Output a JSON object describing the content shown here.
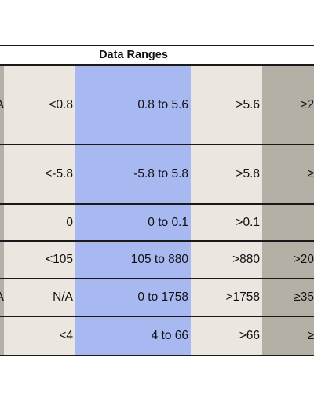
{
  "table": {
    "title": "Data Ranges",
    "rows": [
      {
        "edge": "A",
        "low": "<0.8",
        "mid": "0.8 to 5.6",
        "high": ">5.6",
        "crit": "≥2"
      },
      {
        "edge": "",
        "low": "<-5.8",
        "mid": "-5.8 to 5.8",
        "high": ">5.8",
        "crit": "≥"
      },
      {
        "edge": "",
        "low": "0",
        "mid": "0 to 0.1",
        "high": ">0.1",
        "crit": ""
      },
      {
        "edge": "",
        "low": "<105",
        "mid": "105 to 880",
        "high": ">880",
        "crit": ">20"
      },
      {
        "edge": "A",
        "low": "N/A",
        "mid": "0 to 1758",
        "high": ">1758",
        "crit": "≥35"
      },
      {
        "edge": "",
        "low": "<4",
        "mid": "4  to 66",
        "high": ">66",
        "crit": "≥"
      }
    ]
  },
  "colors": {
    "edge_column": "#b4b0a6",
    "low_column": "#ebe6df",
    "mid_column": "#a8b8f0",
    "high_column": "#ebe6df",
    "crit_column": "#b4b0a6",
    "rule_lines": "#1a1a1a"
  }
}
